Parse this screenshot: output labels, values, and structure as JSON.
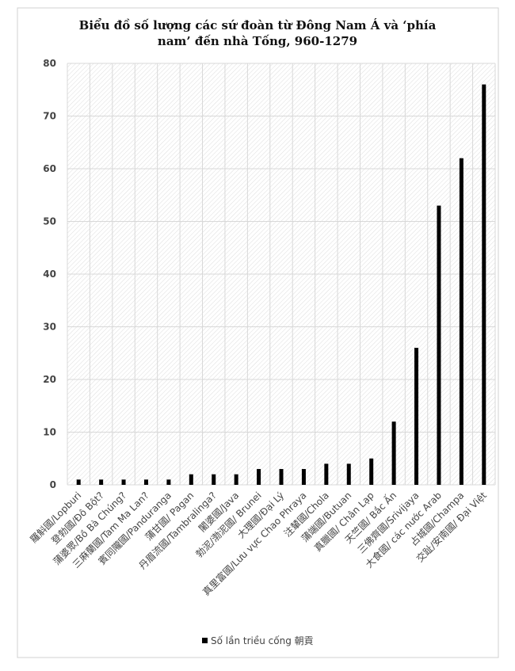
{
  "chart_data": {
    "type": "bar",
    "title": [
      "Biểu đồ số lượng các sứ đoàn từ Đông Nam Á và ‘phía",
      "nam’ đến nhà Tống, 960-1279"
    ],
    "categories": [
      "羅斛國/Lopburi",
      "登勃國/Đô Bột?",
      "蒲婆眾/Bồ Bà Chúng?",
      "三麻蘭國/Tam Ma Lan?",
      "賓同隴國/Panduranga",
      "蒲甘國/ Pagan",
      "丹眉流國/Tambralinga?",
      "闍婆國/Java",
      "勃泥/渤泥國/ Brunei",
      "大理國/Đại Lý",
      "真里富國/Lưu vực Chao Phraya",
      "注輦國/Chola",
      "蒲端國/Butuan",
      "真臘國/ Chân Lạp",
      "天竺國/ Bắc Ấn",
      "三佛齊國/Srivijaya",
      "大食國/ các nước Arab",
      "占城國/Champa",
      "交趾/安南國/ Đại Việt"
    ],
    "series": [
      {
        "name": "Số lần triều cống 朝貢",
        "color": "#000000",
        "values": [
          1,
          1,
          1,
          1,
          1,
          2,
          2,
          2,
          3,
          3,
          3,
          4,
          4,
          5,
          12,
          26,
          53,
          62,
          76
        ]
      }
    ],
    "ylim": [
      0,
      80
    ],
    "yticks": [
      0,
      10,
      20,
      30,
      40,
      50,
      60,
      70,
      80
    ],
    "grid": true,
    "legend": "bottom"
  }
}
